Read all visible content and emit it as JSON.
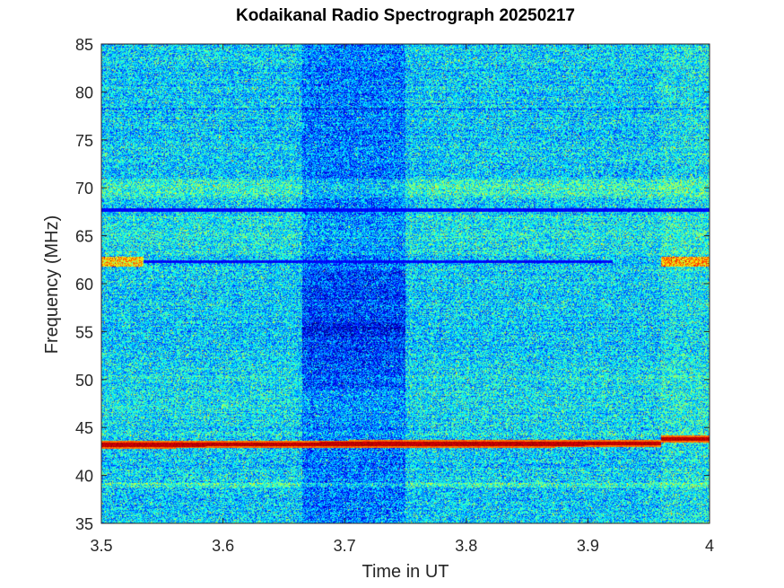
{
  "chart_data": {
    "type": "heatmap",
    "title": "Kodaikanal Radio Spectrograph  20250217",
    "xlabel": "Time in UT",
    "ylabel": "Frequency (MHz)",
    "xlim": [
      3.5,
      4.0
    ],
    "ylim": [
      35,
      85
    ],
    "x_ticks": [
      3.5,
      3.6,
      3.7,
      3.8,
      3.9,
      4.0
    ],
    "x_tick_labels": [
      "3.5",
      "3.6",
      "3.7",
      "3.8",
      "3.9",
      "4"
    ],
    "y_ticks": [
      35,
      40,
      45,
      50,
      55,
      60,
      65,
      70,
      75,
      80,
      85
    ],
    "y_tick_labels": [
      "35",
      "40",
      "45",
      "50",
      "55",
      "60",
      "65",
      "70",
      "75",
      "80",
      "85"
    ],
    "colormap": "jet",
    "grid": false,
    "legend": "none",
    "features": {
      "quiet_interval": {
        "t_start": 3.665,
        "t_end": 3.75
      },
      "weak_interval": {
        "t_start": 3.96,
        "t_end": 4.0
      },
      "strong_emission_line": {
        "freq_start": 43.2,
        "freq_end": 43.8,
        "t_step": 3.96
      },
      "absorption_lines_mhz": [
        67.7,
        62.3
      ],
      "enhanced_band_mhz": [
        69.0,
        71.0
      ],
      "faint_line_mhz": 39.0
    }
  }
}
